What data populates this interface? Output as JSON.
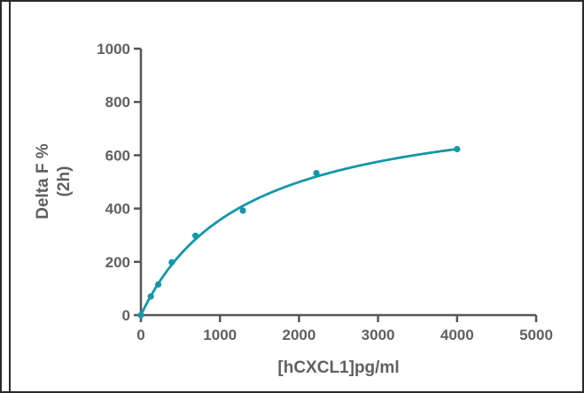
{
  "chart_data": {
    "type": "scatter",
    "title": "",
    "xlabel": "[hCXCL1]pg/ml",
    "ylabel_lines": [
      "Delta F %",
      "(2h)"
    ],
    "xlim": [
      0,
      5000
    ],
    "ylim": [
      0,
      1000
    ],
    "x_ticks": [
      0,
      1000,
      2000,
      3000,
      4000,
      5000
    ],
    "y_ticks": [
      0,
      200,
      400,
      600,
      800,
      1000
    ],
    "grid": false,
    "legend": "none",
    "colors": {
      "series": "#1497a9",
      "axis": "#555555",
      "text": "#606060"
    },
    "series": [
      {
        "points": [
          {
            "x": 0,
            "y": 0
          },
          {
            "x": 125,
            "y": 70
          },
          {
            "x": 220,
            "y": 115
          },
          {
            "x": 390,
            "y": 198
          },
          {
            "x": 690,
            "y": 298
          },
          {
            "x": 1290,
            "y": 392
          },
          {
            "x": 2220,
            "y": 533
          },
          {
            "x": 4000,
            "y": 623
          }
        ],
        "fit": {
          "model": "one-site saturation",
          "bmax": 829,
          "kd": 1320
        }
      }
    ]
  }
}
